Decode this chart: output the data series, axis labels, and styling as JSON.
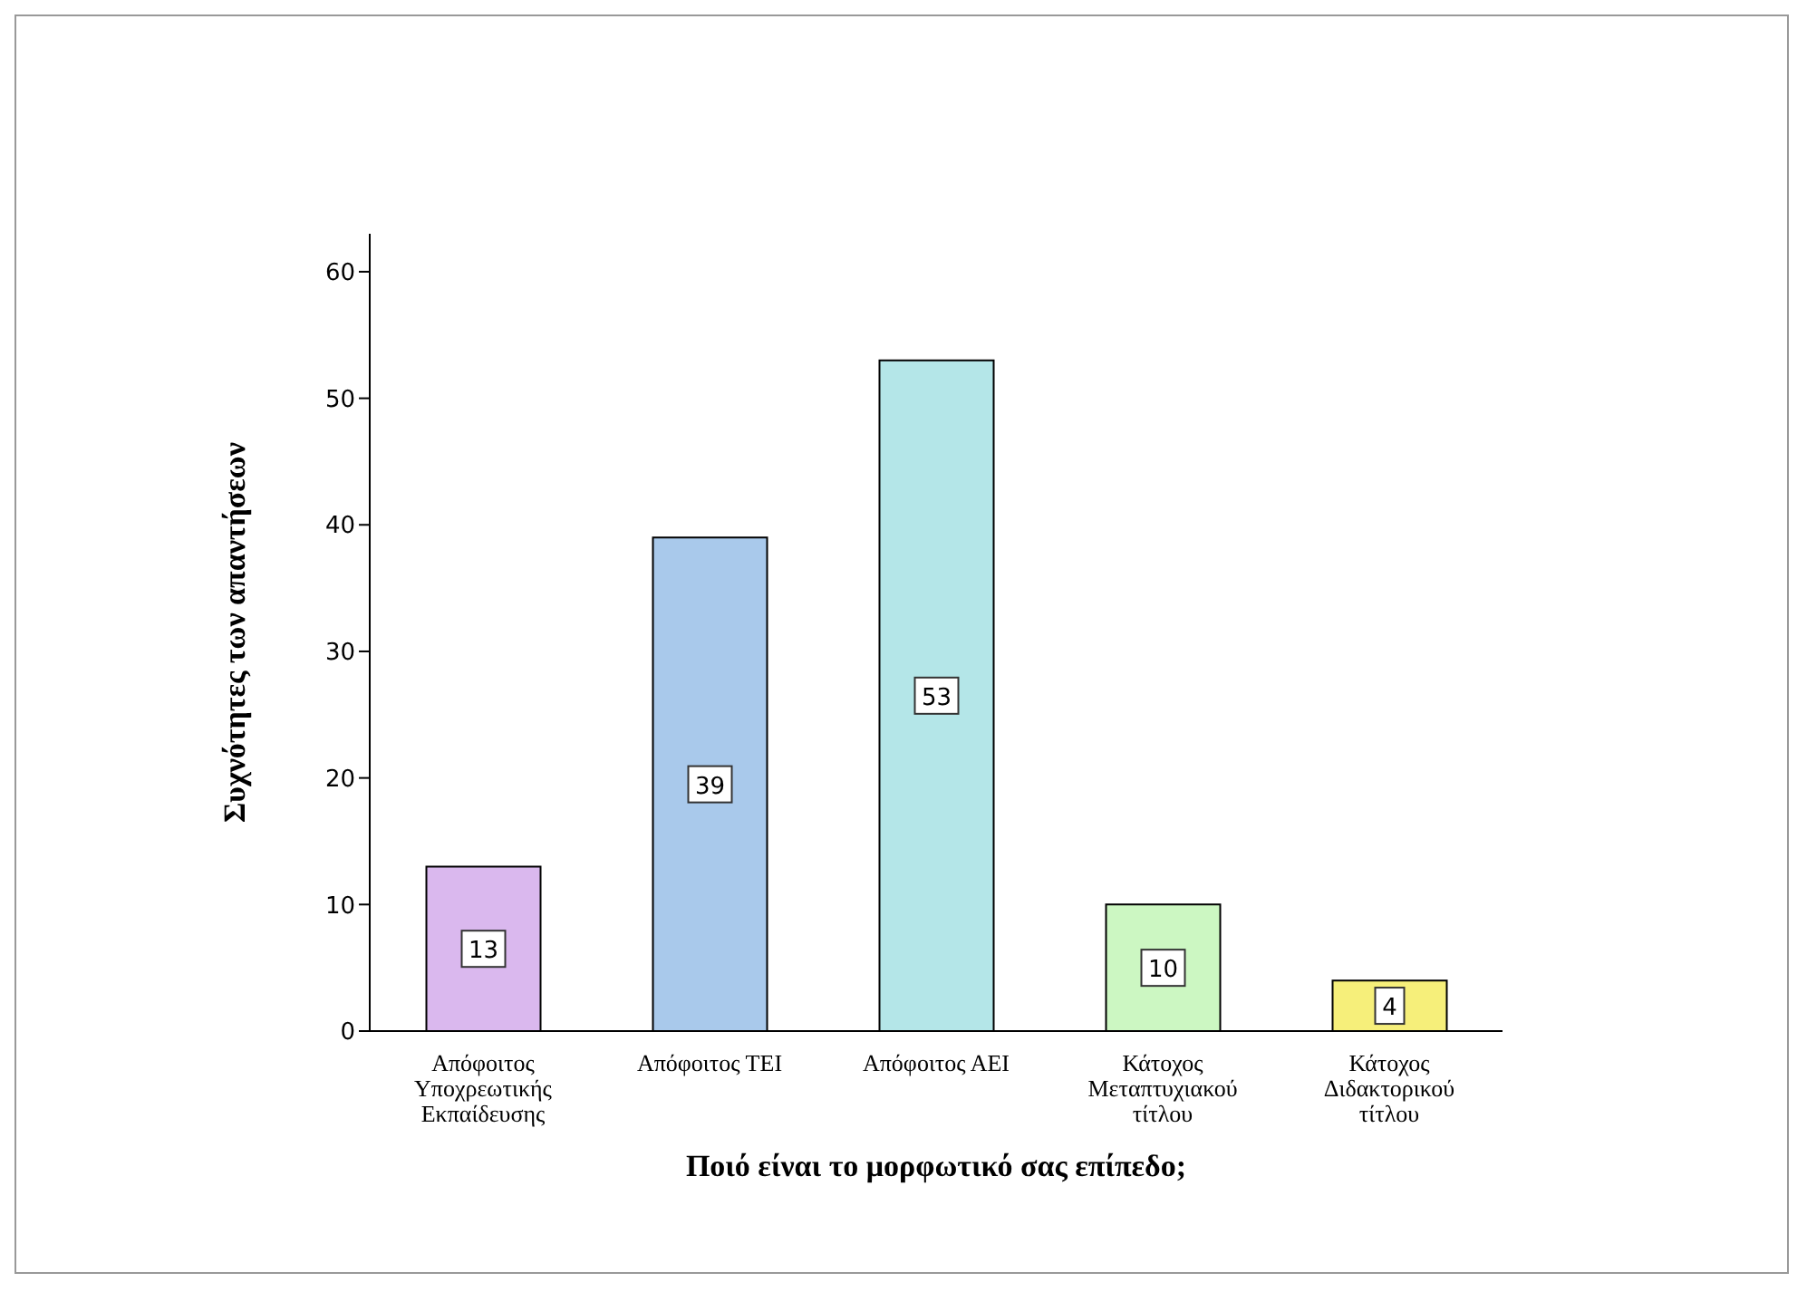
{
  "chart_data": {
    "type": "bar",
    "xlabel": "Ποιό είναι το μορφωτικό σας επίπεδο;",
    "ylabel": "Συχνότητες των απαντήσεων",
    "categories": [
      "Απόφοιτος Υποχρεωτικής Εκπαίδευσης",
      "Απόφοιτος ΤΕΙ",
      "Απόφοιτος ΑΕΙ",
      "Κάτοχος Μεταπτυχιακού τίτλου",
      "Κάτοχος Διδακτορικού τίτλου"
    ],
    "values": [
      13,
      39,
      53,
      10,
      4
    ],
    "colors": [
      "#dab8ee",
      "#a9c9eb",
      "#b4e6e8",
      "#ccf7c2",
      "#f6ef7a"
    ],
    "ylim": [
      0,
      63
    ],
    "yticks": [
      0,
      10,
      20,
      30,
      40,
      50,
      60
    ],
    "data_labels": true
  }
}
